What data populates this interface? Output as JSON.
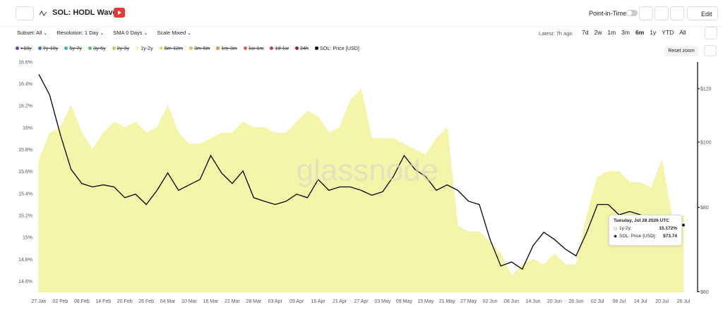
{
  "header": {
    "title": "SOL: HODL Waves",
    "point_in_time": "Point-in-Time",
    "edit": "Edit"
  },
  "filters": [
    "Subset: All",
    "Resolution: 1 Day",
    "SMA 0 Days",
    "Scale Mixed"
  ],
  "latest": "Latest: 7h ago",
  "ranges": [
    "7d",
    "2w",
    "1m",
    "3m",
    "6m",
    "1y",
    "YTD",
    "All"
  ],
  "reset_zoom": "Reset zoom",
  "watermark": "glassnode",
  "tooltip": {
    "date": "Tuesday, Jul 28 2026 UTC",
    "rows": [
      {
        "label": "1y-2y:",
        "value": "15.172%",
        "color": "#f5f5a0"
      },
      {
        "label": "SOL: Price [USD]:",
        "value": "$73.74",
        "color": "#000000"
      }
    ]
  },
  "chart_data": {
    "type": "area",
    "legend": [
      {
        "name": ">10y",
        "color": "#6a3fb5",
        "hidden": true
      },
      {
        "name": "7y-10y",
        "color": "#3b6fd0",
        "hidden": true
      },
      {
        "name": "5y-7y",
        "color": "#3fb0b0",
        "hidden": true
      },
      {
        "name": "3y-5y",
        "color": "#5fbf6a",
        "hidden": true
      },
      {
        "name": "2y-3y",
        "color": "#b9d44a",
        "hidden": true
      },
      {
        "name": "1y-2y",
        "color": "#f5f5a0",
        "hidden": false
      },
      {
        "name": "6m-12m",
        "color": "#f6d860",
        "hidden": true
      },
      {
        "name": "3m-6m",
        "color": "#f5b94b",
        "hidden": true
      },
      {
        "name": "1m-3m",
        "color": "#f08a3c",
        "hidden": true
      },
      {
        "name": "1w-1m",
        "color": "#e8603c",
        "hidden": true
      },
      {
        "name": "1d-1w",
        "color": "#d63a3a",
        "hidden": true
      },
      {
        "name": "24h",
        "color": "#a0203a",
        "hidden": true
      },
      {
        "name": "SOL: Price [USD]",
        "color": "#000000",
        "hidden": false
      }
    ],
    "categories": [
      "27 Jan",
      null,
      "02 Feb",
      null,
      "08 Feb",
      null,
      "14 Feb",
      null,
      "20 Feb",
      null,
      "26 Feb",
      null,
      "04 Mar",
      null,
      "10 Mar",
      null,
      "16 Mar",
      null,
      "22 Mar",
      null,
      "28 Mar",
      null,
      "03 Apr",
      null,
      "09 Apr",
      null,
      "15 Apr",
      null,
      "21 Apr",
      null,
      "27 Apr",
      null,
      "03 May",
      null,
      "09 May",
      null,
      "15 May",
      null,
      "21 May",
      null,
      "27 May",
      null,
      "02 Jun",
      null,
      "08 Jun",
      null,
      "14 Jun",
      null,
      "20 Jun",
      null,
      "26 Jun",
      null,
      "02 Jul",
      null,
      "08 Jul",
      null,
      "14 Jul",
      null,
      "20 Jul",
      null,
      "26 Jul"
    ],
    "series": [
      {
        "name": "1y-2y",
        "type": "area",
        "color": "#f5f5a0",
        "values": [
          15.7,
          15.95,
          16.0,
          16.2,
          15.95,
          15.8,
          15.95,
          16.05,
          16.0,
          16.05,
          15.95,
          16.0,
          16.2,
          15.95,
          15.85,
          15.85,
          15.9,
          15.95,
          15.95,
          16.05,
          16.0,
          16.0,
          15.95,
          15.95,
          16.05,
          16.15,
          16.1,
          15.95,
          16.0,
          16.25,
          16.35,
          15.9,
          15.9,
          15.9,
          15.85,
          15.8,
          15.75,
          15.9,
          16.0,
          15.1,
          15.05,
          15.05,
          14.95,
          14.85,
          14.65,
          14.75,
          14.8,
          14.75,
          14.85,
          14.75,
          14.75,
          15.2,
          15.55,
          15.6,
          15.6,
          15.5,
          15.5,
          15.45,
          15.7,
          15.15,
          15.2
        ]
      },
      {
        "name": "SOL: Price [USD]",
        "type": "line",
        "axis": "y2",
        "color": "#000000",
        "values": [
          126,
          117.5,
          102.6,
          91.1,
          86.8,
          85.8,
          86.4,
          85.8,
          82.7,
          83.7,
          80.8,
          84.8,
          90.0,
          84.8,
          86.4,
          88.0,
          95.5,
          90.0,
          86.8,
          90.6,
          82.7,
          81.7,
          80.8,
          81.7,
          83.7,
          82.7,
          88.0,
          84.8,
          85.8,
          85.8,
          84.8,
          83.4,
          84.4,
          88.9,
          95.5,
          91.1,
          88.9,
          84.8,
          86.4,
          84.8,
          81.7,
          80.8,
          71.7,
          65.5,
          66.4,
          64.8,
          70.2,
          73.5,
          71.7,
          69.4,
          67.8,
          73.5,
          80.8,
          80.8,
          78.0,
          78.9,
          78.0,
          77.0,
          77.0,
          77.0,
          75.3
        ]
      }
    ],
    "ylim": [
      14.5,
      16.65
    ],
    "yticks": [
      {
        "value": 14.6,
        "label": "14.6%"
      },
      {
        "value": 14.8,
        "label": "14.8%"
      },
      {
        "value": 15,
        "label": "15%"
      },
      {
        "value": 15.2,
        "label": "15.2%"
      },
      {
        "value": 15.4,
        "label": "15.4%"
      },
      {
        "value": 15.6,
        "label": "15.6%"
      },
      {
        "value": 15.8,
        "label": "15.8%"
      },
      {
        "value": 16,
        "label": "16%"
      },
      {
        "value": 16.2,
        "label": "16.2%"
      },
      {
        "value": 16.4,
        "label": "16.4%"
      },
      {
        "value": 16.6,
        "label": "16.6%"
      }
    ],
    "y2lim": [
      59.9,
      134
    ],
    "y2log": true,
    "y2ticks": [
      {
        "value": 60,
        "label": "$60"
      },
      {
        "value": 80,
        "label": "$80"
      },
      {
        "value": 100,
        "label": "$100"
      },
      {
        "value": 120,
        "label": "$120"
      }
    ],
    "grid": false
  }
}
